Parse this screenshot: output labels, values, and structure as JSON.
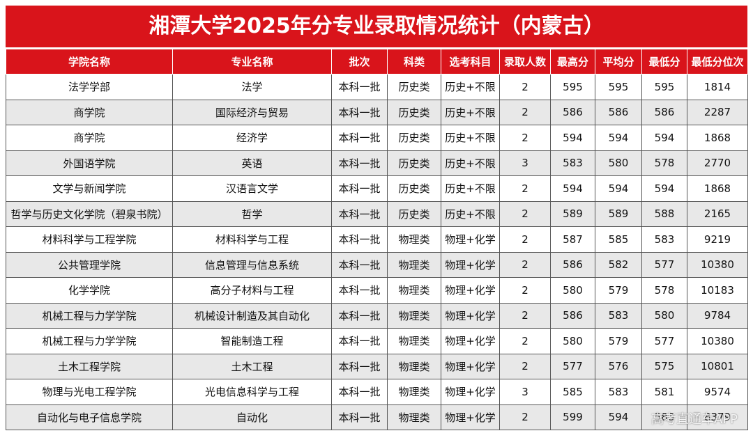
{
  "title": "湘潭大学2025年分专业录取情况统计（内蒙古）",
  "table": {
    "header": [
      "学院名称",
      "专业名称",
      "批次",
      "科类",
      "选考科目",
      "录取人数",
      "最高分",
      "平均分",
      "最低分",
      "最低分位次"
    ],
    "rows": [
      [
        "法学学部",
        "法学",
        "本科一批",
        "历史类",
        "历史+不限",
        2,
        595,
        595,
        595,
        1814
      ],
      [
        "商学院",
        "国际经济与贸易",
        "本科一批",
        "历史类",
        "历史+不限",
        2,
        586,
        586,
        586,
        2287
      ],
      [
        "商学院",
        "经济学",
        "本科一批",
        "历史类",
        "历史+不限",
        2,
        594,
        594,
        594,
        1868
      ],
      [
        "外国语学院",
        "英语",
        "本科一批",
        "历史类",
        "历史+不限",
        3,
        583,
        580,
        578,
        2770
      ],
      [
        "文学与新闻学院",
        "汉语言文学",
        "本科一批",
        "历史类",
        "历史+不限",
        2,
        594,
        594,
        594,
        1868
      ],
      [
        "哲学与历史文化学院（碧泉书院）",
        "哲学",
        "本科一批",
        "历史类",
        "历史+不限",
        2,
        589,
        589,
        588,
        2165
      ],
      [
        "材料科学与工程学院",
        "材料科学与工程",
        "本科一批",
        "物理类",
        "物理+化学",
        2,
        587,
        585,
        583,
        9219
      ],
      [
        "公共管理学院",
        "信息管理与信息系统",
        "本科一批",
        "物理类",
        "物理+化学",
        2,
        586,
        582,
        577,
        10380
      ],
      [
        "化学学院",
        "高分子材料与工程",
        "本科一批",
        "物理类",
        "物理+化学",
        2,
        580,
        579,
        578,
        10183
      ],
      [
        "机械工程与力学学院",
        "机械设计制造及其自动化",
        "本科一批",
        "物理类",
        "物理+化学",
        2,
        586,
        583,
        580,
        9784
      ],
      [
        "机械工程与力学学院",
        "智能制造工程",
        "本科一批",
        "物理类",
        "物理+化学",
        2,
        580,
        579,
        577,
        10380
      ],
      [
        "土木工程学院",
        "土木工程",
        "本科一批",
        "物理类",
        "物理+化学",
        2,
        577,
        576,
        575,
        10801
      ],
      [
        "物理与光电工程学院",
        "光电信息科学与工程",
        "本科一批",
        "物理类",
        "物理+化学",
        3,
        585,
        583,
        581,
        9574
      ],
      [
        "自动化与电子信息学院",
        "自动化",
        "本科一批",
        "物理类",
        "物理+化学",
        2,
        599,
        594,
        588,
        8379
      ]
    ]
  },
  "watermark": "高考直通车APP"
}
